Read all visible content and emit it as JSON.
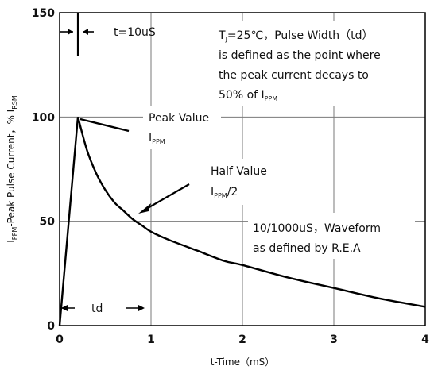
{
  "chart_data": {
    "type": "line",
    "title": "",
    "xlabel": "t-Time（mS）",
    "ylabel": "I_PPM-Peak Pulse Current，% I_RSM",
    "xlim": [
      0,
      4
    ],
    "ylim": [
      0,
      150
    ],
    "x_ticks": [
      "0",
      "1",
      "2",
      "3",
      "4"
    ],
    "y_ticks": [
      "0",
      "50",
      "100",
      "150"
    ],
    "grid": true,
    "series": [
      {
        "x": [
          0,
          0.2,
          0.3,
          0.4,
          0.5,
          0.6,
          0.7,
          0.8,
          0.9,
          1.0,
          1.2,
          1.5,
          1.8,
          2.0,
          2.5,
          3.0,
          3.5,
          4.0
        ],
        "y": [
          0,
          100,
          84,
          73,
          65,
          59,
          55,
          51,
          48,
          45,
          41,
          36,
          31,
          29,
          23,
          18,
          13,
          9
        ]
      }
    ],
    "annotations": {
      "t_label": "t=10uS",
      "note_line1_pre": "T",
      "note_line1_sub": "J",
      "note_line1_post": "=25℃，Pulse Width（td）",
      "note_line2": "is defined as the point where",
      "note_line3": "the peak current  decays to",
      "note_line4_pre": "50% of I",
      "note_line4_sub": "PPM",
      "peak_label": "Peak Value",
      "peak_sym": "I",
      "peak_sym_sub": "PPM",
      "half_label": "Half Value",
      "half_sym": "I",
      "half_sym_sub": "PPM",
      "half_sym_post": "/2",
      "waveform_line1": "10/1000uS，Waveform",
      "waveform_line2": "as defined by R.E.A",
      "td_label": "td"
    }
  }
}
